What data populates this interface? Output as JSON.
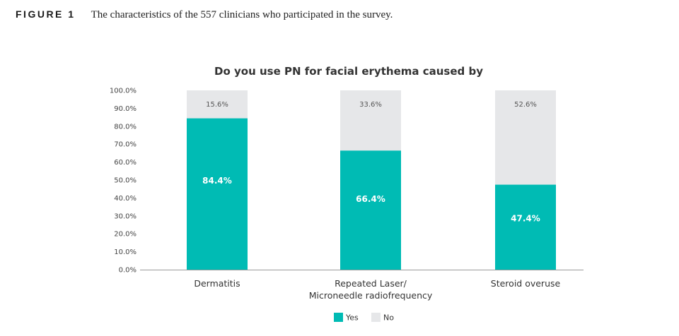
{
  "figure": {
    "label": "FIGURE 1",
    "caption": "The characteristics of the 557 clinicians who participated in the survey."
  },
  "colors": {
    "yes": "#00bbb4",
    "no": "#e6e7e9",
    "axis": "#999999"
  },
  "chart_data": {
    "type": "bar",
    "stacked": true,
    "title": "Do you use PN for facial erythema caused by",
    "categories": [
      [
        "Dermatitis"
      ],
      [
        "Repeated Laser/",
        "Microneedle radiofrequency"
      ],
      [
        "Steroid overuse"
      ]
    ],
    "series": [
      {
        "name": "Yes",
        "values": [
          84.4,
          66.4,
          47.4
        ],
        "labels": [
          "84.4%",
          "66.4%",
          "47.4%"
        ]
      },
      {
        "name": "No",
        "values": [
          15.6,
          33.6,
          52.6
        ],
        "labels": [
          "15.6%",
          "33.6%",
          "52.6%"
        ]
      }
    ],
    "yticks": [
      "0.0%",
      "10.0%",
      "20.0%",
      "30.0%",
      "40.0%",
      "50.0%",
      "60.0%",
      "70.0%",
      "80.0%",
      "90.0%",
      "100.0%"
    ],
    "ylim": [
      0,
      100
    ],
    "xlabel": "",
    "ylabel": "",
    "grid": false,
    "legend_position": "bottom-center"
  }
}
